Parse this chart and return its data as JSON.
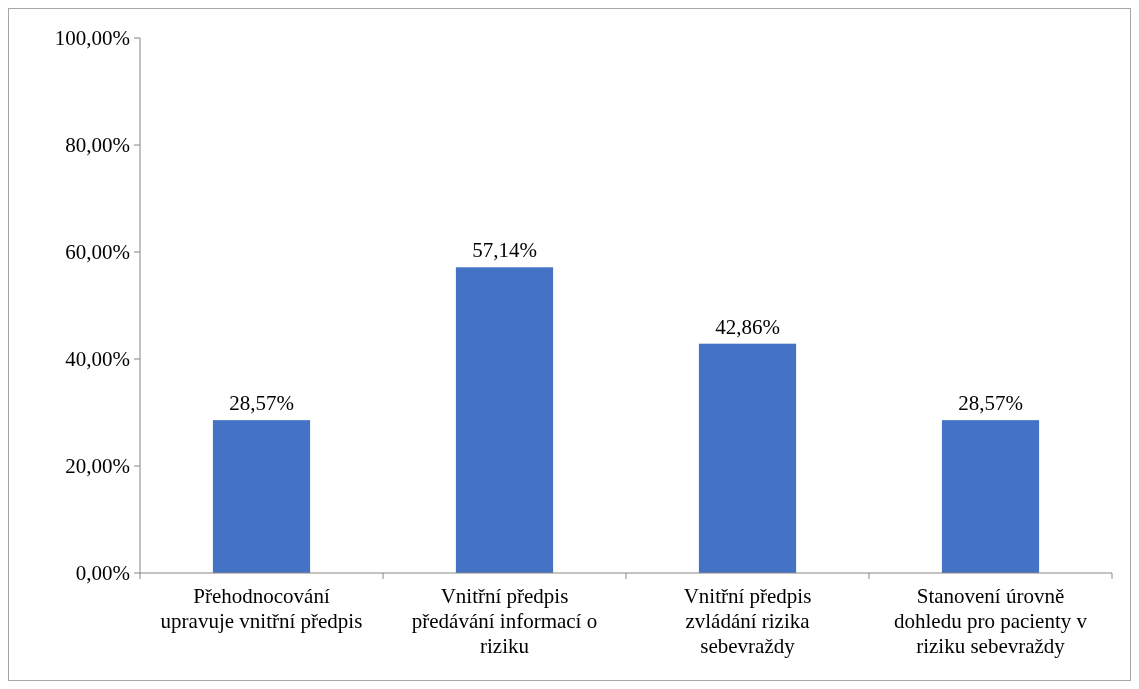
{
  "chart_data": {
    "type": "bar",
    "categories": [
      "Přehodnocování upravuje vnitřní předpis",
      "Vnitřní předpis předávání informací o riziku",
      "Vnitřní předpis zvládání rizika sebevraždy",
      "Stanovení úrovně dohledu pro pacienty v riziku sebevraždy"
    ],
    "values": [
      28.57,
      57.14,
      42.86,
      28.57
    ],
    "value_labels": [
      "28,57%",
      "57,14%",
      "42,86%",
      "28,57%"
    ],
    "color": "#4472c4",
    "ylim": [
      0,
      100
    ],
    "yticks": [
      {
        "value": 0,
        "label": "0,00%"
      },
      {
        "value": 20,
        "label": "20,00%"
      },
      {
        "value": 40,
        "label": "40,00%"
      },
      {
        "value": 60,
        "label": "60,00%"
      },
      {
        "value": 80,
        "label": "80,00%"
      },
      {
        "value": 100,
        "label": "100,00%"
      }
    ],
    "grid": false
  }
}
